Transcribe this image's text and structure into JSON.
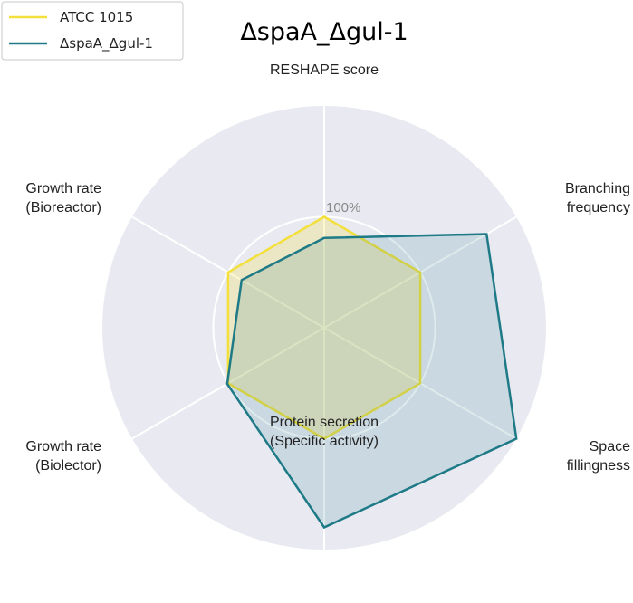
{
  "chart_data": {
    "type": "radar",
    "title": "ΔspaA_Δgul-1",
    "axes": [
      {
        "label_lines": [
          "RESHAPE score"
        ],
        "anchor": "middle"
      },
      {
        "label_lines": [
          "Branching",
          "frequency"
        ],
        "anchor": "end"
      },
      {
        "label_lines": [
          "Space",
          "fillingness"
        ],
        "anchor": "end"
      },
      {
        "label_lines": [
          "Protein secretion",
          "(Specific activity)"
        ],
        "anchor": "middle"
      },
      {
        "label_lines": [
          "Growth rate",
          "(Biolector)"
        ],
        "anchor": "end"
      },
      {
        "label_lines": [
          "Growth rate",
          "(Bioreactor)"
        ],
        "anchor": "end"
      }
    ],
    "rmax": 200,
    "reference_ring": 100,
    "reference_label": "100%",
    "series": [
      {
        "name": "ATCC 1015",
        "color": "#f3e03a",
        "fill": "#f3e03a",
        "fill_opacity": 0.25,
        "values": [
          100,
          100,
          100,
          100,
          100,
          100
        ]
      },
      {
        "name": "ΔspaA_Δgul-1",
        "color": "#1e7a86",
        "fill": "#1e7a86",
        "fill_opacity": 0.15,
        "values": [
          81,
          169,
          200,
          180,
          101,
          86
        ]
      }
    ],
    "legend_position": "upper-left",
    "grid": true
  }
}
